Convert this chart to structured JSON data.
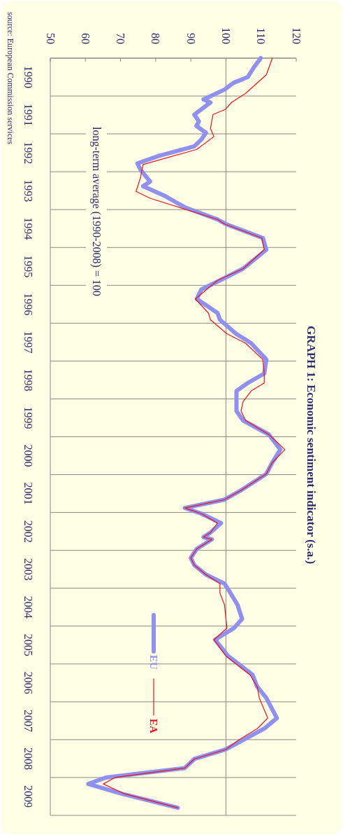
{
  "chart_data": {
    "type": "line",
    "title": "GRAPH 1: Economic sentiment indicator (s.a.)",
    "annotations": [
      "long-term average (1990-2008) = 100",
      "source: European Commission services"
    ],
    "xlim": [
      50,
      120
    ],
    "xticks": [
      50,
      60,
      70,
      80,
      90,
      100,
      110,
      120
    ],
    "ylim": [
      2010,
      1990
    ],
    "yticks": [
      {
        "value": 1990,
        "label": null
      },
      {
        "value": 1990.5,
        "label": "1990"
      },
      {
        "value": 1991,
        "label": null
      },
      {
        "value": 1991.5,
        "label": "1991"
      },
      {
        "value": 1992,
        "label": null
      },
      {
        "value": 1992.5,
        "label": "1992"
      },
      {
        "value": 1993,
        "label": null
      },
      {
        "value": 1993.5,
        "label": "1993"
      },
      {
        "value": 1994,
        "label": null
      },
      {
        "value": 1994.5,
        "label": "1994"
      },
      {
        "value": 1995,
        "label": null
      },
      {
        "value": 1995.5,
        "label": "1995"
      },
      {
        "value": 1996,
        "label": null
      },
      {
        "value": 1996.5,
        "label": "1996"
      },
      {
        "value": 1997,
        "label": null
      },
      {
        "value": 1997.5,
        "label": "1997"
      },
      {
        "value": 1998,
        "label": null
      },
      {
        "value": 1998.5,
        "label": "1998"
      },
      {
        "value": 1999,
        "label": null
      },
      {
        "value": 1999.5,
        "label": "1999"
      },
      {
        "value": 2000,
        "label": null
      },
      {
        "value": 2000.5,
        "label": "2000"
      },
      {
        "value": 2001,
        "label": null
      },
      {
        "value": 2001.5,
        "label": "2001"
      },
      {
        "value": 2002,
        "label": null
      },
      {
        "value": 2002.5,
        "label": "2002"
      },
      {
        "value": 2003,
        "label": null
      },
      {
        "value": 2003.5,
        "label": "2003"
      },
      {
        "value": 2004,
        "label": null
      },
      {
        "value": 2004.5,
        "label": "2004"
      },
      {
        "value": 2005,
        "label": null
      },
      {
        "value": 2005.5,
        "label": "2005"
      },
      {
        "value": 2006,
        "label": null
      },
      {
        "value": 2006.5,
        "label": "2006"
      },
      {
        "value": 2007,
        "label": null
      },
      {
        "value": 2007.5,
        "label": "2007"
      },
      {
        "value": 2008,
        "label": null
      },
      {
        "value": 2008.5,
        "label": "2008"
      },
      {
        "value": 2009,
        "label": null
      },
      {
        "value": 2009.5,
        "label": "2009"
      },
      {
        "value": 2010,
        "label": null
      }
    ],
    "grid": "y",
    "legend": "bottom",
    "marker": "none",
    "line_style": "solid",
    "ref_lines": [
      {
        "axis": "x",
        "value": 100,
        "color": "#8a8a80"
      }
    ],
    "series": [
      {
        "name": "EU",
        "color": "#9090ee",
        "x": [
          109.9,
          107.9,
          106.2,
          102.2,
          99.6,
          93.6,
          95.6,
          91.0,
          92.3,
          91.6,
          94.3,
          93.0,
          91.0,
          81.0,
          74.8,
          75.7,
          78.4,
          76.4,
          82.4,
          88.3,
          97.6,
          99.9,
          110.5,
          111.5,
          104.9,
          98.3,
          93.0,
          91.7,
          97.6,
          98.3,
          102.9,
          107.2,
          111.5,
          110.9,
          106.2,
          103.0,
          103.0,
          103.0,
          104.9,
          112.2,
          115.5,
          113.2,
          111.5,
          104.2,
          99.6,
          88.3,
          93.0,
          98.6,
          95.6,
          93.6,
          96.0,
          91.7,
          90.0,
          91.0,
          94.3,
          99.6,
          101.3,
          103.3,
          104.6,
          102.3,
          96.9,
          100.6,
          107.6,
          108.9,
          111.5,
          114.5,
          110.9,
          104.9,
          99.9,
          91.0,
          88.3,
          65.8,
          60.8,
          70.4,
          86.3
        ],
        "values": [
          1990.0,
          1990.25,
          1990.5,
          1990.65,
          1990.83,
          1991.09,
          1991.17,
          1991.49,
          1991.67,
          1991.79,
          1991.97,
          1992.15,
          1992.33,
          1992.58,
          1992.78,
          1992.95,
          1993.26,
          1993.38,
          1993.63,
          1993.94,
          1994.26,
          1994.38,
          1994.75,
          1995.06,
          1995.56,
          1995.87,
          1996.11,
          1996.36,
          1996.73,
          1996.91,
          1997.28,
          1997.53,
          1997.96,
          1998.33,
          1998.58,
          1998.79,
          1999.07,
          1999.32,
          1999.57,
          1999.94,
          2000.34,
          2000.68,
          2000.98,
          2001.42,
          2001.66,
          2001.88,
          2002.03,
          2002.28,
          2002.53,
          2002.65,
          2002.71,
          2002.96,
          2003.2,
          2003.39,
          2003.64,
          2003.88,
          2004.13,
          2004.44,
          2004.81,
          2005.05,
          2005.36,
          2005.79,
          2006.29,
          2006.6,
          2006.9,
          2007.43,
          2007.71,
          2008.01,
          2008.26,
          2008.51,
          2008.75,
          2009.0,
          2009.17,
          2009.43,
          2009.8
        ]
      },
      {
        "name": "EA",
        "color": "#e8141c",
        "x": [
          113.2,
          111.5,
          105.6,
          101.6,
          99.9,
          96.3,
          95.6,
          96.6,
          91.7,
          76.4,
          75.7,
          74.4,
          78.4,
          97.6,
          99.6,
          110.2,
          110.9,
          104.9,
          97.6,
          91.3,
          95.0,
          95.6,
          100.3,
          105.6,
          110.5,
          110.9,
          110.9,
          107.2,
          104.9,
          104.3,
          105.6,
          112.2,
          116.8,
          113.2,
          111.5,
          104.2,
          99.6,
          88.3,
          93.0,
          97.6,
          95.6,
          93.6,
          96.0,
          91.7,
          90.0,
          91.0,
          94.3,
          98.3,
          98.3,
          99.6,
          100.0,
          100.3,
          96.6,
          100.0,
          106.9,
          108.9,
          109.5,
          111.9,
          108.9,
          103.6,
          99.9,
          91.0,
          88.3,
          68.4,
          65.1,
          71.1,
          86.3
        ],
        "values": [
          1990.0,
          1990.44,
          1990.93,
          1991.17,
          1991.35,
          1991.49,
          1991.86,
          1992.07,
          1992.41,
          1992.81,
          1993.15,
          1993.52,
          1993.7,
          1994.26,
          1994.38,
          1994.75,
          1995.06,
          1995.56,
          1995.87,
          1996.36,
          1996.73,
          1996.91,
          1997.28,
          1997.53,
          1997.96,
          1998.33,
          1998.58,
          1998.79,
          1999.07,
          1999.32,
          1999.57,
          1999.94,
          2000.34,
          2000.68,
          2000.98,
          2001.42,
          2001.66,
          2001.88,
          2002.03,
          2002.28,
          2002.53,
          2002.65,
          2002.71,
          2002.96,
          2003.2,
          2003.39,
          2003.64,
          2003.88,
          2004.13,
          2004.44,
          2004.81,
          2005.05,
          2005.36,
          2005.79,
          2006.29,
          2006.6,
          2006.9,
          2007.43,
          2007.71,
          2008.01,
          2008.26,
          2008.51,
          2008.75,
          2009.0,
          2009.17,
          2009.43,
          2009.8
        ]
      }
    ]
  }
}
